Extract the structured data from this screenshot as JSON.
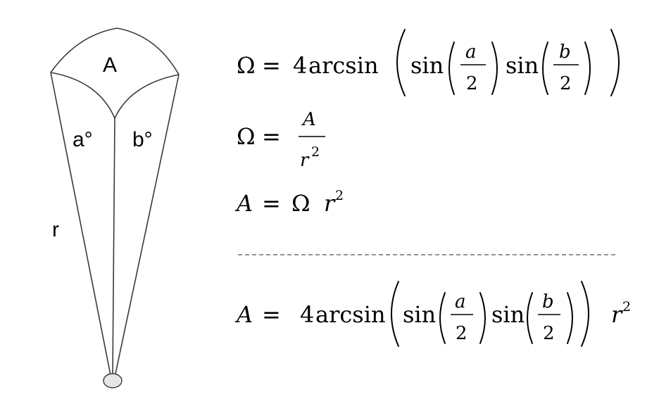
{
  "diagram": {
    "labels": {
      "area": "A",
      "angle_a": "a°",
      "angle_b": "b°",
      "radius": "r"
    }
  },
  "formulas": {
    "omega": "Ω",
    "equals": "=",
    "four": "4",
    "arcsin": "arcsin",
    "sin": "sin",
    "var_a": "a",
    "var_b": "b",
    "var_A": "A",
    "var_r": "r",
    "two": "2",
    "exp_two": "2"
  }
}
